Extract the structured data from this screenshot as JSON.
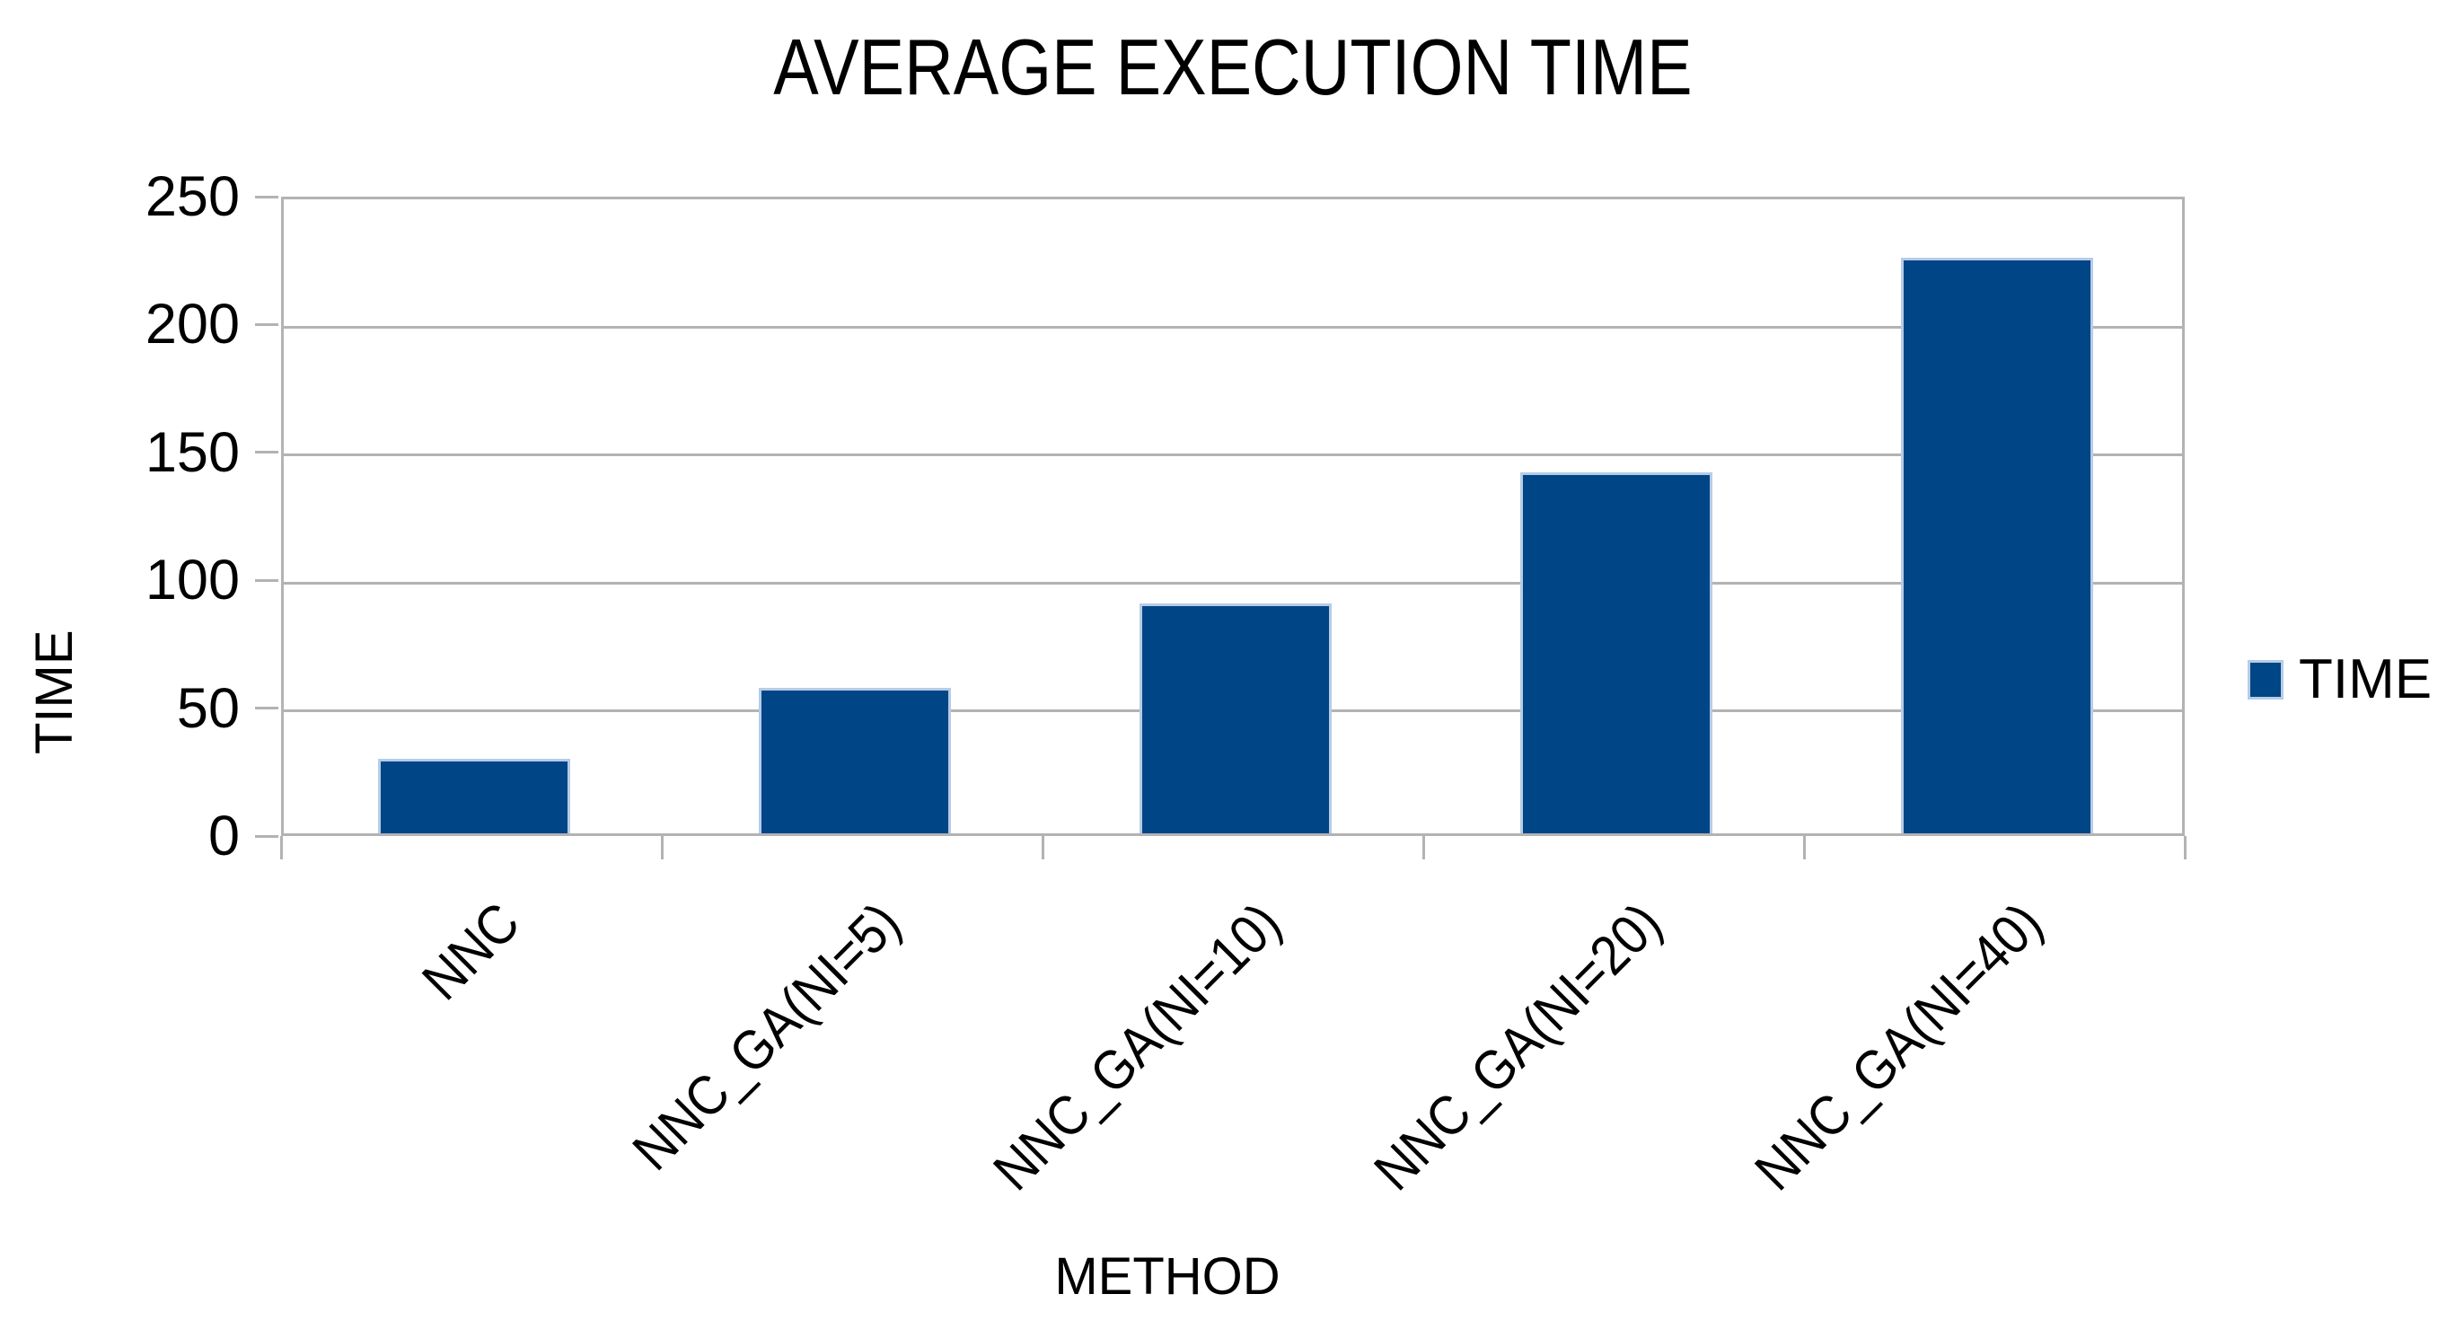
{
  "chart_data": {
    "type": "bar",
    "title": "AVERAGE EXECUTION TIME",
    "xlabel": "METHOD",
    "ylabel": "TIME",
    "categories": [
      "NNC",
      "NNC_GA(NI=5)",
      "NNC_GA(NI=10)",
      "NNC_GA(NI=20)",
      "NNC_GA(NI=40)"
    ],
    "series": [
      {
        "name": "TIME",
        "values": [
          29,
          57,
          90,
          141,
          225
        ]
      }
    ],
    "ylim": [
      0,
      250
    ],
    "yticks": [
      0,
      50,
      100,
      150,
      200,
      250
    ],
    "grid": "horizontal",
    "legend_position": "right",
    "colors": {
      "bar_fill": "#004586",
      "bar_border": "#b6cce6",
      "gridline": "#b3b3b3",
      "axis_frame": "#b3b3b3",
      "text": "#000000",
      "background": "#ffffff"
    }
  }
}
